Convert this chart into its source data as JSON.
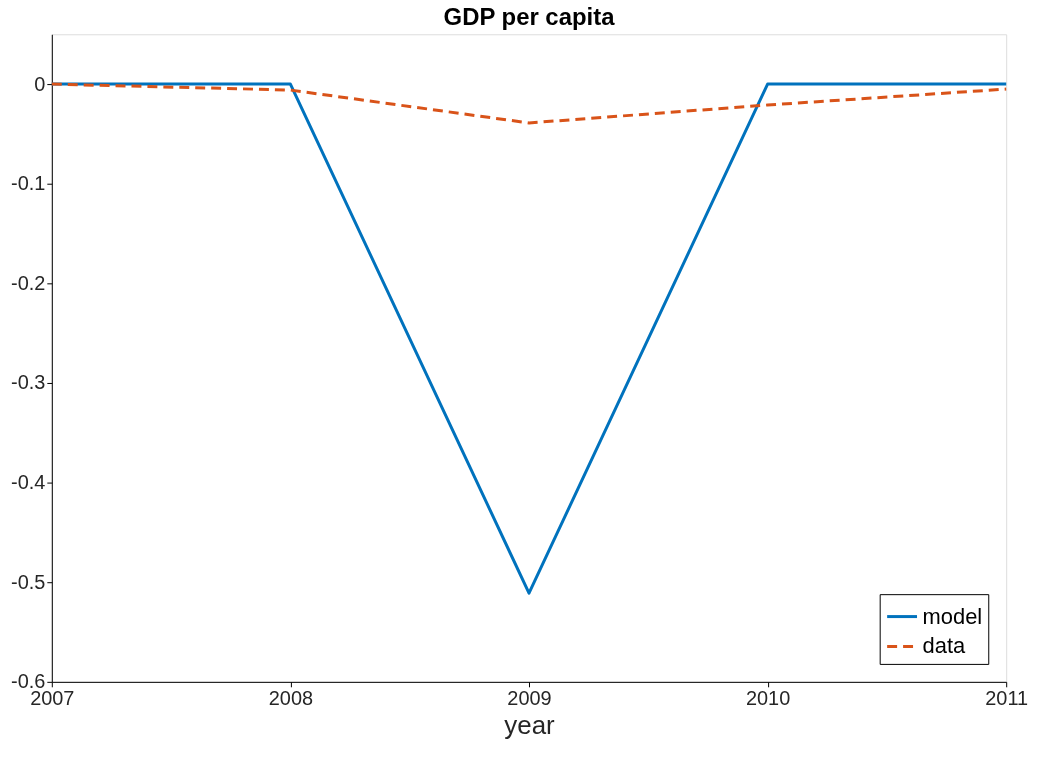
{
  "chart_data": {
    "type": "line",
    "title": "GDP per capita",
    "xlabel": "year",
    "x": [
      2007,
      2008,
      2009,
      2010,
      2011
    ],
    "series": [
      {
        "name": "model",
        "color": "#0072bd",
        "line_style": "solid",
        "values": [
          0,
          0,
          -0.511,
          0,
          0
        ]
      },
      {
        "name": "data",
        "color": "#d95319",
        "line_style": "dashed",
        "values": [
          0,
          -0.006,
          -0.039,
          -0.021,
          -0.005
        ]
      }
    ],
    "xlim": [
      2007,
      2011
    ],
    "xticks": [
      2007,
      2008,
      2009,
      2010,
      2011
    ],
    "ylim": [
      -0.6,
      0.05
    ],
    "yticks": [
      -0.6,
      -0.5,
      -0.4,
      -0.3,
      -0.2,
      -0.1,
      0
    ],
    "grid": false,
    "legend": "bottom right",
    "marker": "none"
  }
}
